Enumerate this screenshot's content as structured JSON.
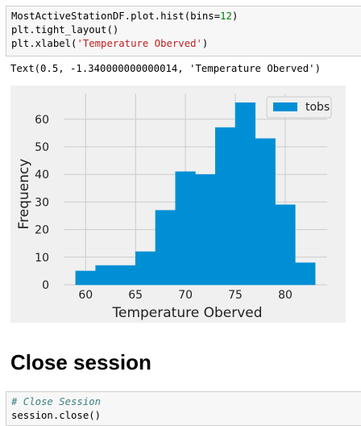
{
  "cell1": {
    "lines": [
      [
        {
          "t": "MostActiveStationDF.plot.hist(bins=",
          "c": ""
        },
        {
          "t": "12",
          "c": "tok-num"
        },
        {
          "t": ")",
          "c": ""
        }
      ],
      [
        {
          "t": "plt.tight_layout()",
          "c": ""
        }
      ],
      [
        {
          "t": "plt.xlabel(",
          "c": ""
        },
        {
          "t": "'Temperature Oberved'",
          "c": "tok-str"
        },
        {
          "t": ")",
          "c": ""
        }
      ]
    ]
  },
  "output": {
    "text": "Text(0.5, -1.340000000000014, 'Temperature Oberved')"
  },
  "chart_data": {
    "type": "bar",
    "subtype": "histogram",
    "bin_edges": [
      59,
      61,
      63,
      65,
      67,
      69,
      71,
      73,
      75,
      77,
      79,
      81,
      83
    ],
    "series": [
      {
        "name": "tobs",
        "values": [
          5,
          7,
          7,
          12,
          27,
          41,
          40,
          57,
          66,
          53,
          29,
          8
        ]
      }
    ],
    "xlabel": "Temperature Oberved",
    "ylabel": "Frequency",
    "xlim": [
      57.8,
      84.2
    ],
    "ylim": [
      0,
      69.3
    ],
    "xticks": [
      60,
      65,
      70,
      75,
      80
    ],
    "yticks": [
      0,
      10,
      20,
      30,
      40,
      50,
      60
    ],
    "grid": true,
    "legend": "top-right",
    "colors": {
      "bar": "#008fd5",
      "background": "#f0f0f0",
      "grid": "#cbcbcb"
    }
  },
  "heading": {
    "text": "Close session"
  },
  "cell2": {
    "lines": [
      [
        {
          "t": "# Close Session",
          "c": "tok-cmt"
        }
      ],
      [
        {
          "t": "session.close()",
          "c": ""
        }
      ]
    ]
  }
}
